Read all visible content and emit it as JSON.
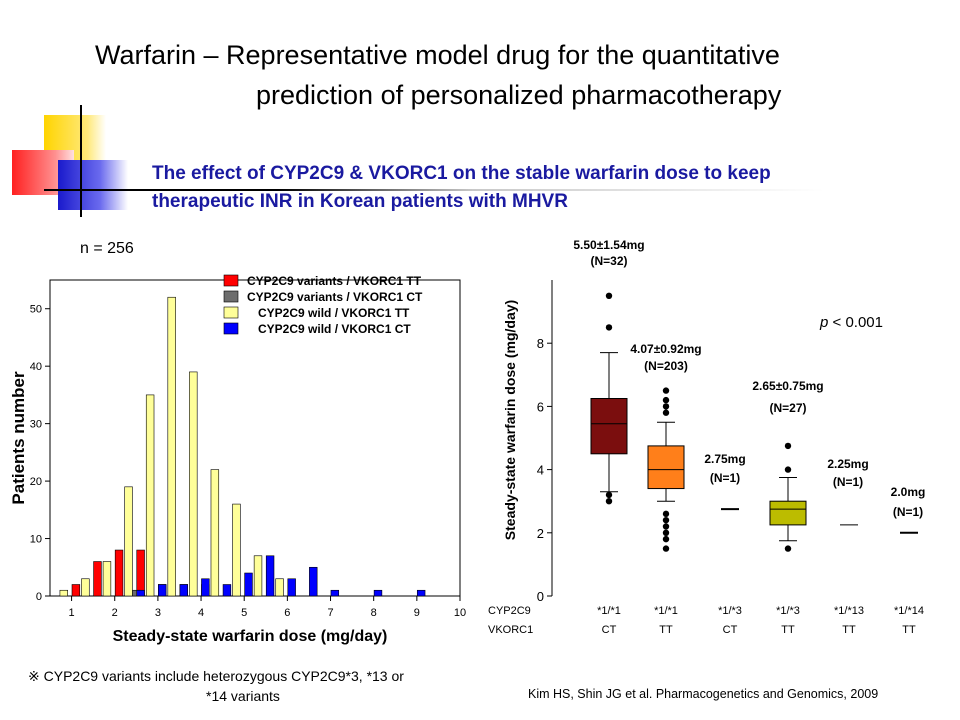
{
  "header": {
    "title_line1": "Warfarin – Representative model drug for the quantitative",
    "title_line2": "prediction of personalized   pharmacotherapy",
    "subtitle_line1": "The effect of CYP2C9 & VKORC1 on the stable warfarin dose to keep",
    "subtitle_line2": "therapeutic INR  in Korean patients with MHVR",
    "subtitle_color": "#1a1aa0"
  },
  "footnote": {
    "line1": "※ CYP2C9 variants include heterozygous CYP2C9*3, *13 or",
    "line2": "*14 variants"
  },
  "citation": "Kim HS, Shin JG et al. Pharmacogenetics and Genomics, 2009",
  "chart_data": [
    {
      "type": "bar",
      "annotation": "n = 256",
      "xlabel": "Steady-state warfarin dose (mg/day)",
      "ylabel": "Patients number",
      "xlim": [
        0.5,
        10
      ],
      "ylim": [
        0,
        55
      ],
      "xticks": [
        1,
        2,
        3,
        4,
        5,
        6,
        7,
        8,
        9,
        10
      ],
      "yticks": [
        0,
        10,
        20,
        30,
        40,
        50
      ],
      "bin_width": 0.5,
      "legend_position": "top-right",
      "series": [
        {
          "name": "CYP2C9 variants / VKORC1 TT",
          "color": "#ff0000",
          "x": [
            1,
            1.5,
            2,
            2.5,
            3,
            3.5,
            4
          ],
          "values": [
            2,
            6,
            8,
            8,
            2,
            2,
            2
          ]
        },
        {
          "name": "CYP2C9 variants / VKORC1 CT",
          "color": "#6d6d6d",
          "x": [
            2.5
          ],
          "values": [
            1
          ]
        },
        {
          "name": "CYP2C9 wild / VKORC1 TT",
          "color": "#ffff99",
          "x": [
            1,
            1.5,
            2,
            2.5,
            3,
            3.5,
            4,
            4.5,
            5,
            5.5,
            6
          ],
          "values": [
            1,
            3,
            6,
            19,
            35,
            52,
            39,
            22,
            16,
            7,
            3
          ]
        },
        {
          "name": "CYP2C9 wild / VKORC1 CT",
          "color": "#0000ff",
          "x": [
            2.5,
            3,
            3.5,
            4,
            4.5,
            5,
            5.5,
            6,
            6.5,
            7,
            8,
            9
          ],
          "values": [
            1,
            2,
            2,
            3,
            2,
            4,
            7,
            3,
            5,
            1,
            1,
            1
          ]
        }
      ]
    },
    {
      "type": "box",
      "ylabel": "Steady-state warfarin dose (mg/day)",
      "ylim": [
        0,
        10
      ],
      "yticks": [
        0,
        2,
        4,
        6,
        8
      ],
      "row_labels": [
        "CYP2C9",
        "VKORC1"
      ],
      "annotation": "p < 0.001",
      "annotation_italic_part": "p",
      "categories": [
        {
          "cyp2c9": "*1/*1",
          "vkorc1": "CT",
          "color": "#7b0e0e",
          "q1": 4.5,
          "median": 5.45,
          "q3": 6.25,
          "whisker_low": 3.3,
          "whisker_high": 7.7,
          "outliers": [
            3.2,
            3.0,
            8.5,
            9.5
          ],
          "label_line1": "5.50±1.54mg",
          "label_line2": "(N=32)"
        },
        {
          "cyp2c9": "*1/*1",
          "vkorc1": "TT",
          "color": "#ff7f1a",
          "q1": 3.4,
          "median": 4.0,
          "q3": 4.75,
          "whisker_low": 3.0,
          "whisker_high": 5.5,
          "outliers": [
            2.6,
            2.4,
            2.2,
            2.0,
            1.8,
            1.5,
            5.8,
            6.0,
            6.2,
            6.5
          ],
          "label_line1": "4.07±0.92mg",
          "label_line2": "(N=203)"
        },
        {
          "cyp2c9": "*1/*3",
          "vkorc1": "CT",
          "color": "#000000",
          "single": 2.75,
          "label_line1": "2.75mg",
          "label_line2": "(N=1)"
        },
        {
          "cyp2c9": "*1/*3",
          "vkorc1": "TT",
          "color": "#bcbc00",
          "q1": 2.25,
          "median": 2.75,
          "q3": 3.0,
          "whisker_low": 1.75,
          "whisker_high": 3.75,
          "outliers": [
            1.5,
            4.0,
            4.75
          ],
          "label_line1": "2.65±0.75mg",
          "label_line2": "(N=27)"
        },
        {
          "cyp2c9": "*1/*13",
          "vkorc1": "TT",
          "color": "#000000",
          "single": 2.25,
          "label_line1": "2.25mg",
          "label_line2": "(N=1)"
        },
        {
          "cyp2c9": "*1/*14",
          "vkorc1": "TT",
          "color": "#000000",
          "single": 2.0,
          "label_line1": "2.0mg",
          "label_line2": "(N=1)"
        }
      ]
    }
  ]
}
